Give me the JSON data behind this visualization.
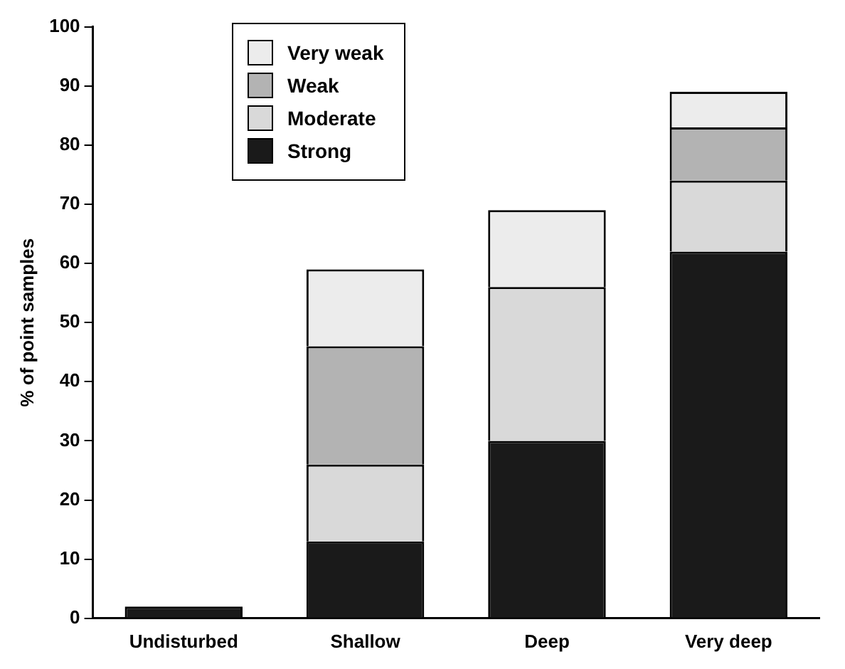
{
  "chart_data": {
    "type": "bar",
    "stacked": true,
    "ylabel": "% of point samples",
    "categories": [
      "Undisturbed",
      "Shallow",
      "Deep",
      "Very deep"
    ],
    "series": [
      {
        "name": "Strong",
        "color": "#1a1a1a",
        "values": [
          2,
          13,
          30,
          62
        ]
      },
      {
        "name": "Moderate",
        "color": "#d9d9d9",
        "values": [
          0,
          13,
          26,
          12
        ]
      },
      {
        "name": "Weak",
        "color": "#b3b3b3",
        "values": [
          0,
          20,
          0,
          9
        ]
      },
      {
        "name": "Very weak",
        "color": "#ececec",
        "values": [
          0,
          13,
          13,
          6
        ]
      }
    ],
    "ylim": [
      0,
      100
    ],
    "yticks": [
      0,
      10,
      20,
      30,
      40,
      50,
      60,
      70,
      80,
      90,
      100
    ],
    "grid": false,
    "legend": "top left"
  }
}
